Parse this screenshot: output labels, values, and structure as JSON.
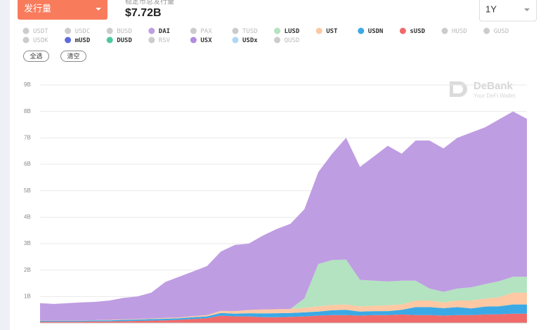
{
  "header": {
    "metric_selector": "发行量",
    "total_label": "稳定币总发行量",
    "total_value": "$7.72B",
    "period_selector": "1Y"
  },
  "controls": {
    "select_all": "全选",
    "clear": "清空"
  },
  "watermark": {
    "brand": "DeBank",
    "tagline": "Your DeFi Wallet"
  },
  "chart_data": {
    "type": "area",
    "stacked": true,
    "ylim": [
      0,
      9
    ],
    "yticks": [
      {
        "value": 1,
        "label": "1B"
      },
      {
        "value": 2,
        "label": "2B"
      },
      {
        "value": 3,
        "label": "3B"
      },
      {
        "value": 4,
        "label": "4B"
      },
      {
        "value": 5,
        "label": "5B"
      },
      {
        "value": 6,
        "label": "6B"
      },
      {
        "value": 7,
        "label": "7B"
      },
      {
        "value": 8,
        "label": "8B"
      },
      {
        "value": 9,
        "label": "9B"
      }
    ],
    "grid": true,
    "series": [
      {
        "name": "USDT",
        "color": "#cccccc",
        "active": false
      },
      {
        "name": "USDC",
        "color": "#cccccc",
        "active": false
      },
      {
        "name": "BUSD",
        "color": "#cccccc",
        "active": false
      },
      {
        "name": "DAI",
        "color": "#bf9de2",
        "active": true,
        "values": [
          0.66,
          0.63,
          0.66,
          0.69,
          0.69,
          0.73,
          0.81,
          0.85,
          0.98,
          1.36,
          1.54,
          1.69,
          1.85,
          2.24,
          2.5,
          2.51,
          2.79,
          3.03,
          3.22,
          3.37,
          3.47,
          4.02,
          4.6,
          4.27,
          4.7,
          5.13,
          4.8,
          5.3,
          5.6,
          5.42,
          5.7,
          5.85,
          5.93,
          6.12,
          6.25,
          5.97
        ]
      },
      {
        "name": "PAX",
        "color": "#cccccc",
        "active": false
      },
      {
        "name": "TUSD",
        "color": "#cccccc",
        "active": false
      },
      {
        "name": "LUSD",
        "color": "#b3e3c0",
        "active": true,
        "values": [
          0,
          0,
          0,
          0,
          0,
          0,
          0,
          0,
          0,
          0,
          0,
          0,
          0,
          0,
          0,
          0,
          0,
          0,
          0,
          0.35,
          1.6,
          1.7,
          1.7,
          1.0,
          0.95,
          0.9,
          0.9,
          0.75,
          0.45,
          0.4,
          0.45,
          0.5,
          0.55,
          0.6,
          0.6,
          0.6
        ]
      },
      {
        "name": "UST",
        "color": "#fdc8a3",
        "active": true,
        "values": [
          0.01,
          0.01,
          0.01,
          0.01,
          0.01,
          0.02,
          0.02,
          0.02,
          0.02,
          0.03,
          0.03,
          0.04,
          0.05,
          0.08,
          0.1,
          0.12,
          0.15,
          0.15,
          0.15,
          0.18,
          0.2,
          0.2,
          0.2,
          0.2,
          0.2,
          0.22,
          0.2,
          0.25,
          0.25,
          0.22,
          0.25,
          0.3,
          0.3,
          0.35,
          0.45,
          0.45
        ]
      },
      {
        "name": "USDN",
        "color": "#3ba9e6",
        "active": true,
        "values": [
          0.03,
          0.03,
          0.03,
          0.03,
          0.04,
          0.04,
          0.05,
          0.05,
          0.06,
          0.06,
          0.06,
          0.07,
          0.07,
          0.1,
          0.1,
          0.12,
          0.14,
          0.15,
          0.15,
          0.15,
          0.15,
          0.18,
          0.2,
          0.15,
          0.15,
          0.15,
          0.18,
          0.3,
          0.3,
          0.28,
          0.3,
          0.25,
          0.3,
          0.3,
          0.35,
          0.35
        ]
      },
      {
        "name": "sUSD",
        "color": "#f06a6a",
        "active": true,
        "values": [
          0.05,
          0.05,
          0.05,
          0.05,
          0.06,
          0.06,
          0.07,
          0.08,
          0.09,
          0.1,
          0.12,
          0.15,
          0.18,
          0.28,
          0.25,
          0.25,
          0.22,
          0.22,
          0.23,
          0.25,
          0.28,
          0.3,
          0.3,
          0.28,
          0.3,
          0.3,
          0.32,
          0.3,
          0.3,
          0.28,
          0.3,
          0.3,
          0.32,
          0.33,
          0.35,
          0.35
        ]
      },
      {
        "name": "HUSD",
        "color": "#cccccc",
        "active": false
      },
      {
        "name": "GUSD",
        "color": "#cccccc",
        "active": false
      },
      {
        "name": "USDK",
        "color": "#cccccc",
        "active": false
      },
      {
        "name": "mUSD",
        "color": "#5b6bd8",
        "active": true
      },
      {
        "name": "DUSD",
        "color": "#4ec99a",
        "active": true
      },
      {
        "name": "RSV",
        "color": "#cccccc",
        "active": false
      },
      {
        "name": "USX",
        "color": "#b38be0",
        "active": true
      },
      {
        "name": "USDx",
        "color": "#acd7f6",
        "active": true
      },
      {
        "name": "QUSD",
        "color": "#cccccc",
        "active": false
      }
    ]
  }
}
